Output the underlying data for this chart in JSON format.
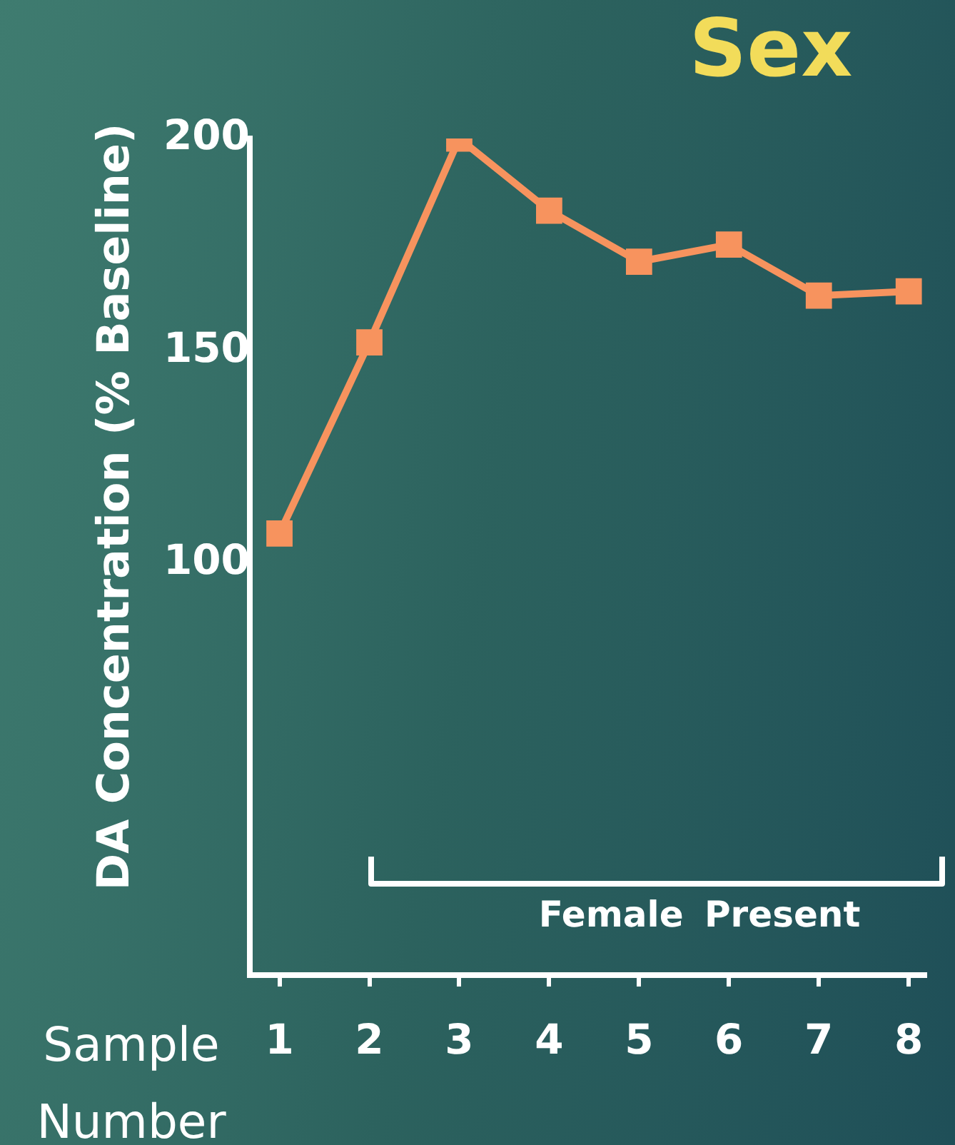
{
  "chart_data": {
    "type": "line",
    "title": "Sex",
    "xlabel": "Sample Number",
    "ylabel": "DA Concentration (% Baseline)",
    "x": [
      1,
      2,
      3,
      4,
      5,
      6,
      7,
      8
    ],
    "series": [
      {
        "color": "#f7935e",
        "values": [
          107,
          152,
          200,
          183,
          171,
          175,
          163,
          164
        ]
      }
    ],
    "xlim": [
      0.67,
      8.18
    ],
    "xticks": [
      1,
      2,
      3,
      4,
      5,
      6,
      7,
      8
    ],
    "ylim": [
      3,
      200
    ],
    "yticks": [
      100,
      150,
      200
    ],
    "marker": "square",
    "line_style": "solid",
    "grid": false,
    "legend": false,
    "annotations": [
      "Female Present"
    ]
  }
}
